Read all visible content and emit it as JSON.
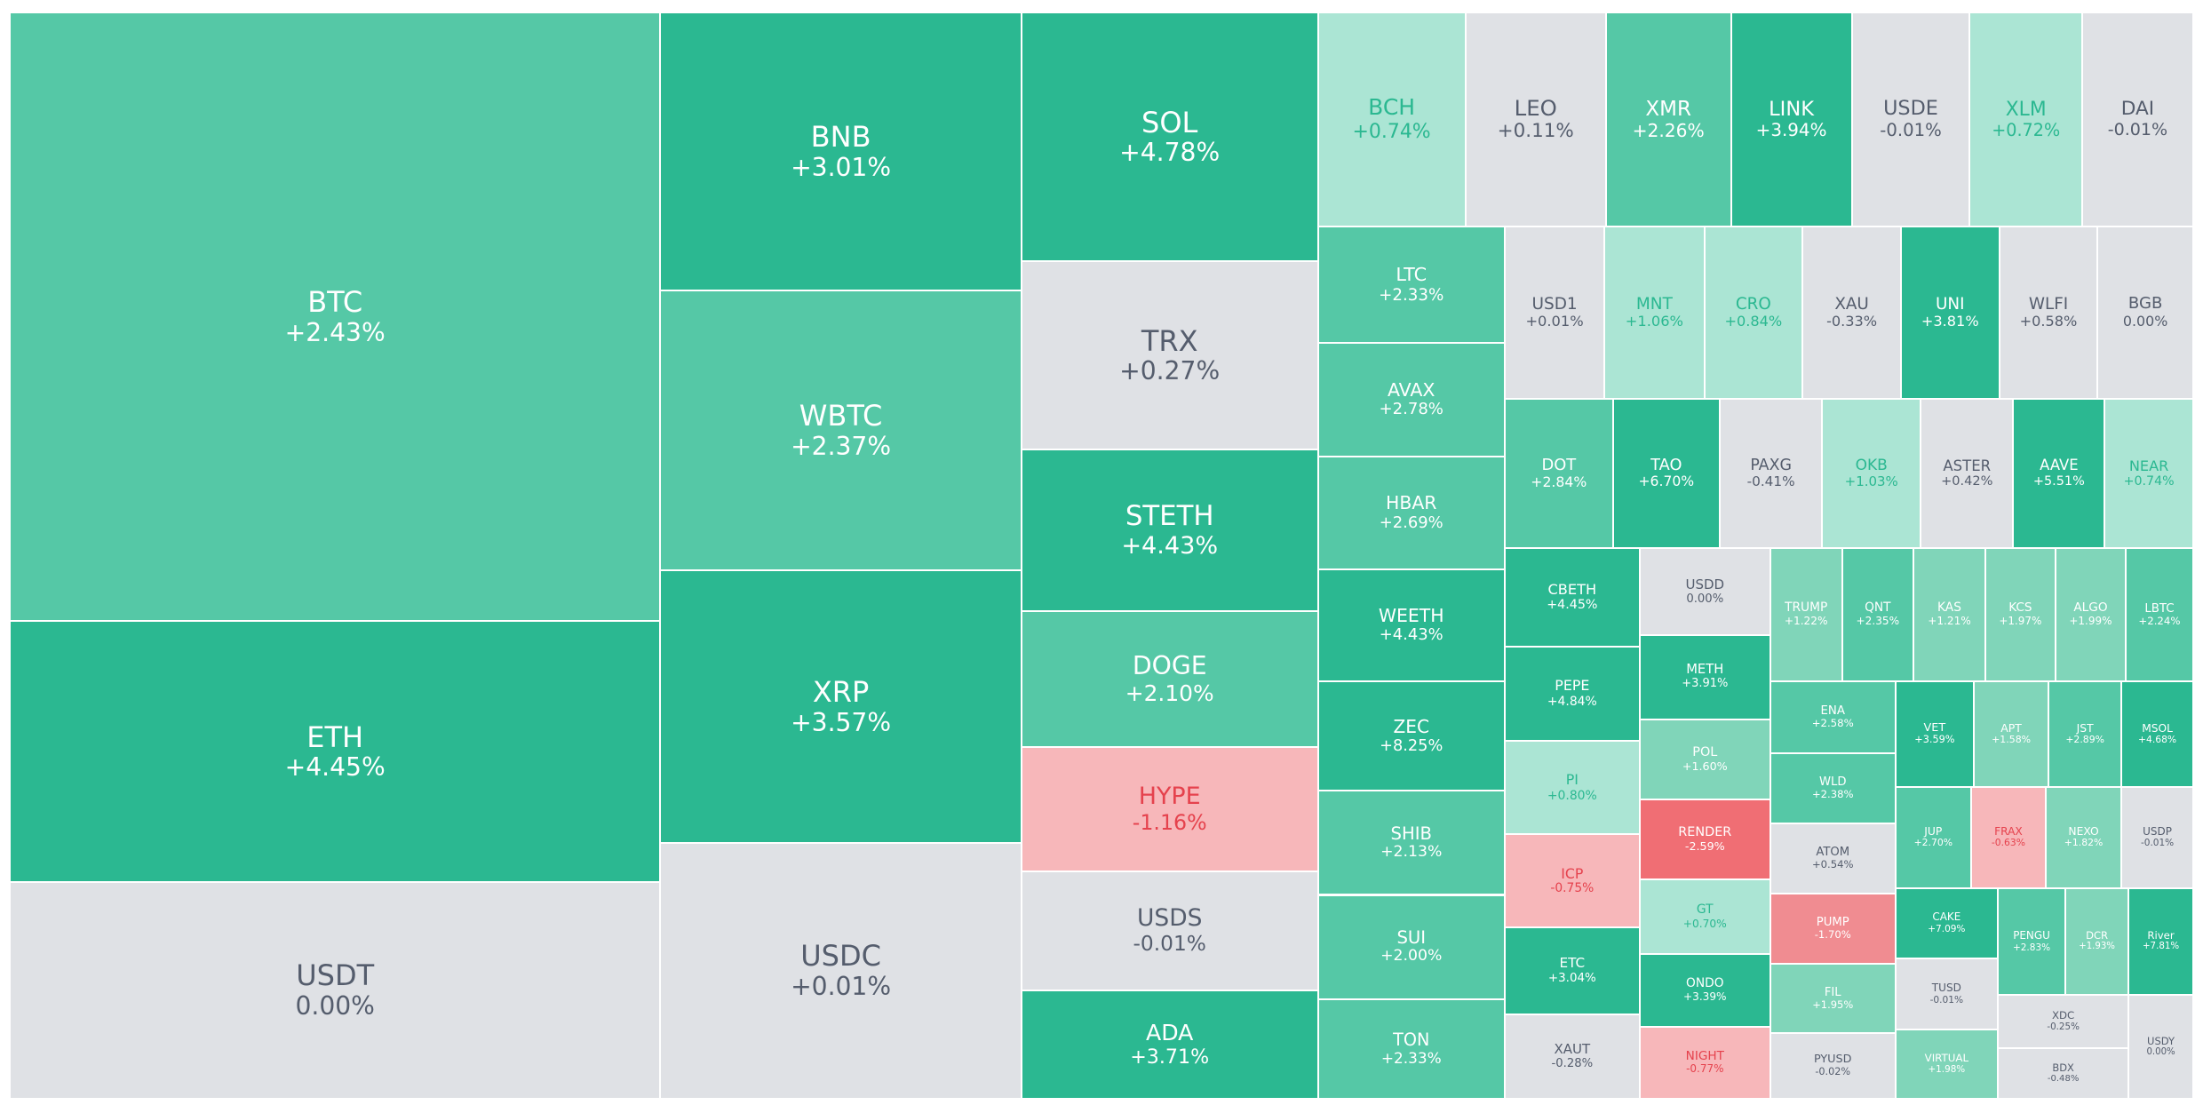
{
  "tiles": [
    {
      "symbol": "BTC",
      "change": "+2.43%"
    },
    {
      "symbol": "ETH",
      "change": "+4.45%"
    },
    {
      "symbol": "USDT",
      "change": "0.00%"
    },
    {
      "symbol": "BNB",
      "change": "+3.01%"
    },
    {
      "symbol": "WBTC",
      "change": "+2.37%"
    },
    {
      "symbol": "XRP",
      "change": "+3.57%"
    },
    {
      "symbol": "USDC",
      "change": "+0.01%"
    },
    {
      "symbol": "SOL",
      "change": "+4.78%"
    },
    {
      "symbol": "TRX",
      "change": "+0.27%"
    },
    {
      "symbol": "STETH",
      "change": "+4.43%"
    },
    {
      "symbol": "DOGE",
      "change": "+2.10%"
    },
    {
      "symbol": "HYPE",
      "change": "-1.16%"
    },
    {
      "symbol": "USDS",
      "change": "-0.01%"
    },
    {
      "symbol": "ADA",
      "change": "+3.71%"
    },
    {
      "symbol": "BCH",
      "change": "+0.74%"
    },
    {
      "symbol": "LEO",
      "change": "+0.11%"
    },
    {
      "symbol": "XMR",
      "change": "+2.26%"
    },
    {
      "symbol": "LINK",
      "change": "+3.94%"
    },
    {
      "symbol": "USDE",
      "change": "-0.01%"
    },
    {
      "symbol": "XLM",
      "change": "+0.72%"
    },
    {
      "symbol": "DAI",
      "change": "-0.01%"
    },
    {
      "symbol": "LTC",
      "change": "+2.33%"
    },
    {
      "symbol": "AVAX",
      "change": "+2.78%"
    },
    {
      "symbol": "HBAR",
      "change": "+2.69%"
    },
    {
      "symbol": "WEETH",
      "change": "+4.43%"
    },
    {
      "symbol": "ZEC",
      "change": "+8.25%"
    },
    {
      "symbol": "SHIB",
      "change": "+2.13%"
    },
    {
      "symbol": "SUI",
      "change": "+2.00%"
    },
    {
      "symbol": "TON",
      "change": "+2.33%"
    },
    {
      "symbol": "USD1",
      "change": "+0.01%"
    },
    {
      "symbol": "MNT",
      "change": "+1.06%"
    },
    {
      "symbol": "CRO",
      "change": "+0.84%"
    },
    {
      "symbol": "XAU",
      "change": "-0.33%"
    },
    {
      "symbol": "UNI",
      "change": "+3.81%"
    },
    {
      "symbol": "WLFI",
      "change": "+0.58%"
    },
    {
      "symbol": "BGB",
      "change": "0.00%"
    },
    {
      "symbol": "DOT",
      "change": "+2.84%"
    },
    {
      "symbol": "TAO",
      "change": "+6.70%"
    },
    {
      "symbol": "PAXG",
      "change": "-0.41%"
    },
    {
      "symbol": "OKB",
      "change": "+1.03%"
    },
    {
      "symbol": "ASTER",
      "change": "+0.42%"
    },
    {
      "symbol": "AAVE",
      "change": "+5.51%"
    },
    {
      "symbol": "NEAR",
      "change": "+0.74%"
    },
    {
      "symbol": "CBETH",
      "change": "+4.45%"
    },
    {
      "symbol": "PEPE",
      "change": "+4.84%"
    },
    {
      "symbol": "PI",
      "change": "+0.80%"
    },
    {
      "symbol": "ICP",
      "change": "-0.75%"
    },
    {
      "symbol": "ETC",
      "change": "+3.04%"
    },
    {
      "symbol": "XAUT",
      "change": "-0.28%"
    },
    {
      "symbol": "USDD",
      "change": "0.00%"
    },
    {
      "symbol": "METH",
      "change": "+3.91%"
    },
    {
      "symbol": "POL",
      "change": "+1.60%"
    },
    {
      "symbol": "RENDER",
      "change": "-2.59%"
    },
    {
      "symbol": "GT",
      "change": "+0.70%"
    },
    {
      "symbol": "ONDO",
      "change": "+3.39%"
    },
    {
      "symbol": "NIGHT",
      "change": "-0.77%"
    },
    {
      "symbol": "TRUMP",
      "change": "+1.22%"
    },
    {
      "symbol": "QNT",
      "change": "+2.35%"
    },
    {
      "symbol": "KAS",
      "change": "+1.21%"
    },
    {
      "symbol": "KCS",
      "change": "+1.97%"
    },
    {
      "symbol": "ALGO",
      "change": "+1.99%"
    },
    {
      "symbol": "LBTC",
      "change": "+2.24%"
    },
    {
      "symbol": "ENA",
      "change": "+2.58%"
    },
    {
      "symbol": "WLD",
      "change": "+2.38%"
    },
    {
      "symbol": "ATOM",
      "change": "+0.54%"
    },
    {
      "symbol": "PUMP",
      "change": "-1.70%"
    },
    {
      "symbol": "FIL",
      "change": "+1.95%"
    },
    {
      "symbol": "PYUSD",
      "change": "-0.02%"
    },
    {
      "symbol": "VET",
      "change": "+3.59%"
    },
    {
      "symbol": "APT",
      "change": "+1.58%"
    },
    {
      "symbol": "JST",
      "change": "+2.89%"
    },
    {
      "symbol": "MSOL",
      "change": "+4.68%"
    },
    {
      "symbol": "JUP",
      "change": "+2.70%"
    },
    {
      "symbol": "FRAX",
      "change": "-0.63%"
    },
    {
      "symbol": "NEXO",
      "change": "+1.82%"
    },
    {
      "symbol": "USDP",
      "change": "-0.01%"
    },
    {
      "symbol": "CAKE",
      "change": "+7.09%"
    },
    {
      "symbol": "TUSD",
      "change": "-0.01%"
    },
    {
      "symbol": "VIRTUAL",
      "change": "+1.98%"
    },
    {
      "symbol": "PENGU",
      "change": "+2.83%"
    },
    {
      "symbol": "DCR",
      "change": "+1.93%"
    },
    {
      "symbol": "River",
      "change": "+7.81%"
    },
    {
      "symbol": "XDC",
      "change": "-0.25%"
    },
    {
      "symbol": "BDX",
      "change": "-0.48%"
    },
    {
      "symbol": "USDY",
      "change": "0.00%"
    }
  ]
}
